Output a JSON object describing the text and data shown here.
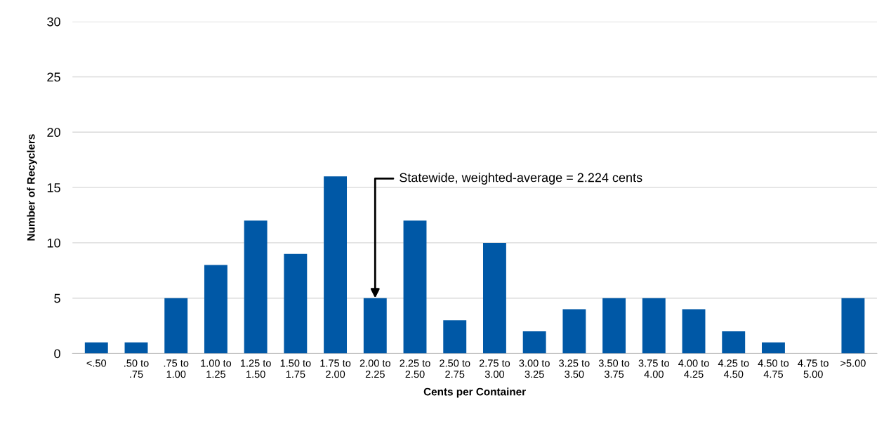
{
  "chart_data": {
    "type": "bar",
    "xlabel": "Cents per Container",
    "ylabel": "Number of Recyclers",
    "categories": [
      "<.50",
      ".50 to\n.75",
      ".75 to\n1.00",
      "1.00 to\n1.25",
      "1.25 to\n1.50",
      "1.50 to\n1.75",
      "1.75 to\n2.00",
      "2.00 to\n2.25",
      "2.25 to\n2.50",
      "2.50 to\n2.75",
      "2.75 to\n3.00",
      "3.00 to\n3.25",
      "3.25 to\n3.50",
      "3.50 to\n3.75",
      "3.75 to\n4.00",
      "4.00 to\n4.25",
      "4.25 to\n4.50",
      "4.50 to\n4.75",
      "4.75 to\n5.00",
      ">5.00"
    ],
    "values": [
      1,
      1,
      5,
      8,
      12,
      9,
      16,
      5,
      12,
      3,
      10,
      2,
      4,
      5,
      5,
      4,
      2,
      1,
      0,
      5
    ],
    "color": "#0058a6",
    "ylim": [
      0,
      30
    ],
    "yticks": [
      0,
      5,
      10,
      15,
      20,
      25,
      30
    ],
    "grid": "y",
    "legend": false,
    "annotations": [
      {
        "text": "Statewide, weighted-average = 2.224 cents",
        "x": "2.00 to\n2.25",
        "y": 5
      }
    ]
  }
}
